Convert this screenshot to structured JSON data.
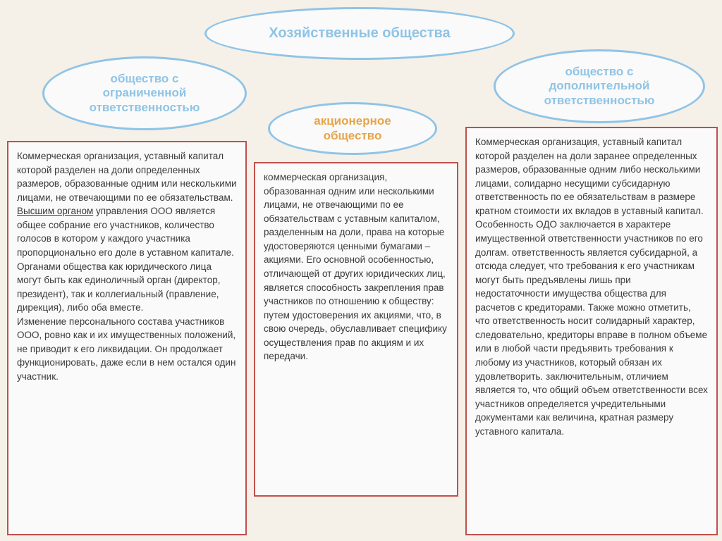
{
  "structure_type": "infographic",
  "background_color": "#f5f0e8",
  "ellipse_border_color": "#8fc4e6",
  "ellipse_bg_color": "#fafafa",
  "box_border_color": "#c0504d",
  "box_bg_color": "#fafafa",
  "body_text_color": "#3a3a3a",
  "main_title": {
    "text": "Хозяйственные общества",
    "color": "#8fc4e6",
    "fontsize": 20
  },
  "left_ellipse": {
    "line1": "общество с",
    "line2": "ограниченной",
    "line3": "ответственностью",
    "color": "#8fc4e6",
    "fontsize": 17
  },
  "center_ellipse": {
    "line1": "акционерное",
    "line2": "общество",
    "color": "#e6a54a",
    "fontsize": 17
  },
  "right_ellipse": {
    "line1": "общество с",
    "line2": "дополнительной",
    "line3": "ответственностью",
    "color": "#8fc4e6",
    "fontsize": 17
  },
  "left_box": {
    "p1_before": "Коммерческая организация, уставный капитал которой разделен на доли определенных размеров, образованные одним или несколькими лицами, не отвечающими по ее обязательствам. ",
    "p1_underline": "Высшим органом",
    "p1_after": " управления ООО является общее собрание его участников, количество голосов в котором у каждого участника пропорционально его доле в уставном капитале.",
    "p2": "Органами общества как юридического лица могут быть как единоличный орган (директор, президент), так и коллегиальный (правление, дирекция), либо оба вместе.",
    "p3": "Изменение персонального состава участников ООО, ровно как и их имущественных положений, не приводит к его ликвидации. Он продолжает функционировать, даже если в нем остался один участник."
  },
  "center_box": {
    "p1": "коммерческая организация, образованная одним или несколькими лицами, не отвечающими по ее обязательствам с уставным капиталом, разделенным на доли, права на которые удостоверяются ценными бумагами – акциями. Его основной особенностью, отличающей от других юридических лиц, является способность закрепления прав участников по отношению к обществу: путем удостоверения их акциями, что, в свою очередь, обуславливает специфику осуществления прав по акциям и их передачи."
  },
  "right_box": {
    "p1": "Коммерческая организация, уставный капитал которой разделен на доли заранее определенных размеров, образованные одним либо несколькими лицами, солидарно несущими субсидарную ответственность по ее обязательствам в размере кратном стоимости их вкладов в уставный капитал.",
    "p2": "Особенность ОДО заключается в характере имущественной ответственности участников по его долгам. ответственность является субсидарной, а отсюда следует, что требования к его участникам могут быть предъявлены лишь при недостаточности имущества общества для расчетов с кредиторами. Также можно отметить, что ответственность носит солидарный характер, следовательно, кредиторы вправе в полном объеме или в любой части предъявить требования к любому из участников, который обязан их удовлетворить. заключительным, отличием является то, что общий объем ответственности всех участников определяется учредительными документами как величина, кратная размеру уставного капитала."
  }
}
